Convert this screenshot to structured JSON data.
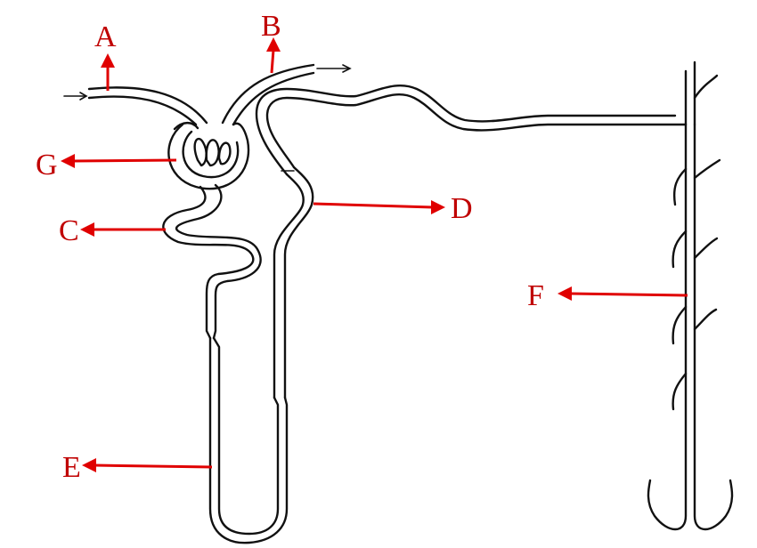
{
  "diagram": {
    "title": "",
    "colors": {
      "label": "#c00000",
      "arrow": "#e00000",
      "line": "#111111",
      "background": "#ffffff"
    },
    "labels": {
      "A": "A",
      "B": "B",
      "C": "C",
      "D": "D",
      "E": "E",
      "F": "F",
      "G": "G"
    }
  }
}
